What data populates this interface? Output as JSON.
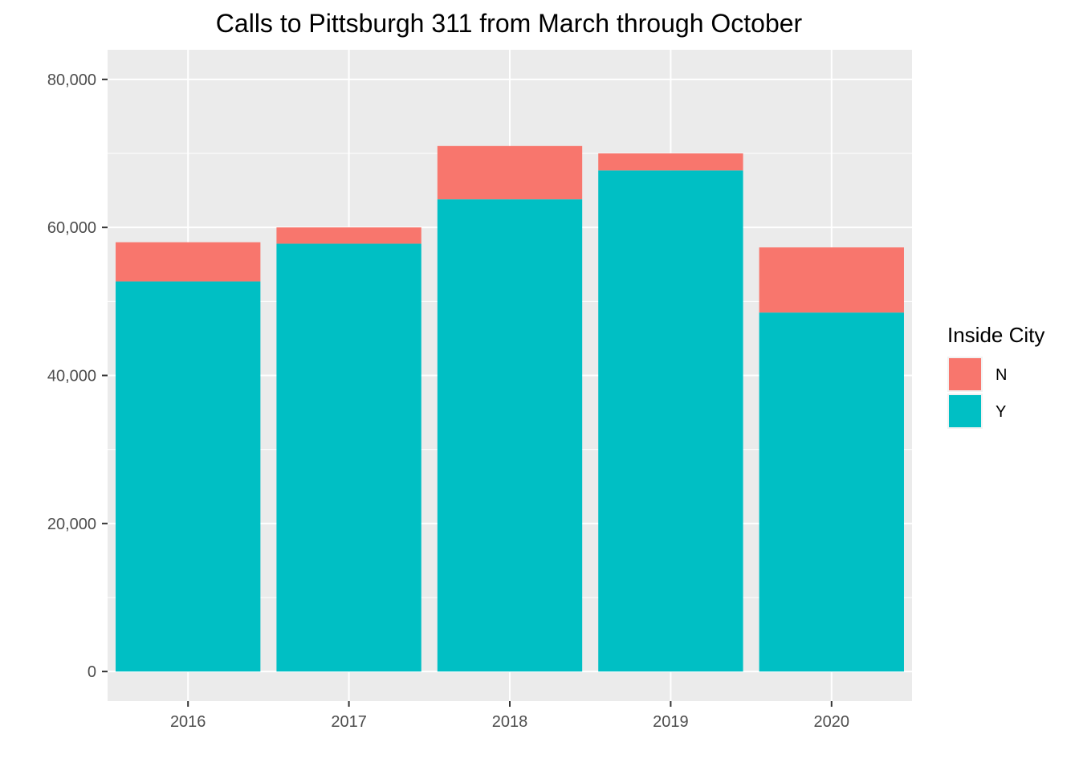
{
  "chart_data": {
    "type": "bar",
    "stacked": true,
    "title": "Calls to Pittsburgh 311 from March through October",
    "xlabel": "",
    "ylabel": "",
    "categories": [
      "2016",
      "2017",
      "2018",
      "2019",
      "2020"
    ],
    "series": [
      {
        "name": "Y",
        "color": "#00BFC4",
        "values": [
          52700,
          57800,
          63800,
          67700,
          48500
        ]
      },
      {
        "name": "N",
        "color": "#F8766D",
        "values": [
          5300,
          2200,
          7200,
          2300,
          8800
        ]
      }
    ],
    "ylim": [
      -4000,
      84000
    ],
    "yticks": [
      0,
      20000,
      40000,
      60000,
      80000
    ],
    "ytick_labels": [
      "0",
      "20,000",
      "40,000",
      "60,000",
      "80,000"
    ],
    "grid": true,
    "legend": {
      "title": "Inside City",
      "position": "right",
      "items": [
        {
          "label": "N",
          "color": "#F8766D"
        },
        {
          "label": "Y",
          "color": "#00BFC4"
        }
      ]
    },
    "panel_background": "#EBEBEB",
    "gridline_color": "#FFFFFF"
  }
}
